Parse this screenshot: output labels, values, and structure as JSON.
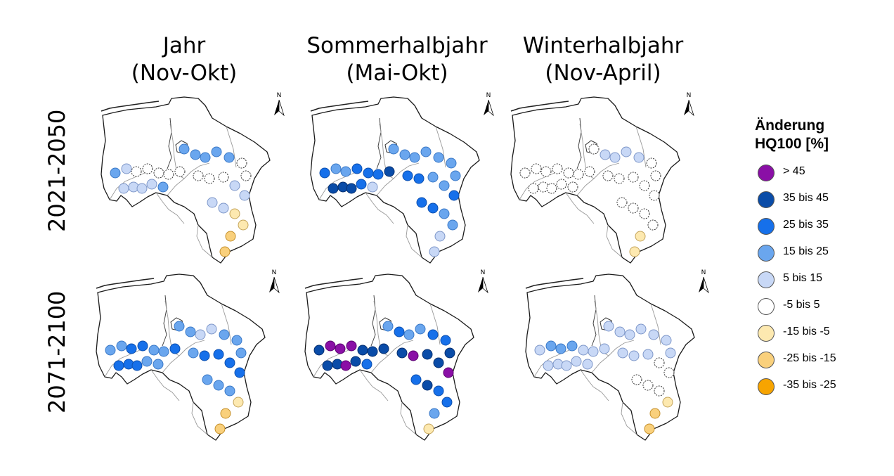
{
  "columns": [
    {
      "line1": "Jahr",
      "line2": "(Nov-Okt)"
    },
    {
      "line1": "Sommerhalbjahr",
      "line2": "(Mai-Okt)"
    },
    {
      "line1": "Winterhalbjahr",
      "line2": "(Nov-April)"
    }
  ],
  "rows": [
    {
      "label": "2021-2050"
    },
    {
      "label": "2071-2100"
    }
  ],
  "north_arrow_label": "N",
  "legend": {
    "title_line1": "Änderung",
    "title_line2": "HQ100 [%]",
    "items": [
      {
        "label": "> 45",
        "color": "#8a0fa6"
      },
      {
        "label": "35 bis 45",
        "color": "#0a4ca8"
      },
      {
        "label": "25 bis 35",
        "color": "#1670ea"
      },
      {
        "label": "15 bis 25",
        "color": "#6aa6ee"
      },
      {
        "label": "5 bis 15",
        "color": "#c8d8f6"
      },
      {
        "label": "-5 bis 5",
        "color": "#ffffff"
      },
      {
        "label": "-15 bis -5",
        "color": "#fde9b0"
      },
      {
        "label": "-25 bis -15",
        "color": "#f9d07c"
      },
      {
        "label": "-35 bis -25",
        "color": "#f7a400"
      }
    ]
  },
  "panels": [
    {
      "period": "2021-2050",
      "season": "Jahr",
      "class_pattern": "345555544443333335555544446677"
    },
    {
      "period": "2021-2050",
      "season": "Sommerhalbjahr",
      "class_pattern": "233222111124333333322332223344"
    },
    {
      "period": "2021-2050",
      "season": "Winterhalbjahr",
      "class_pattern": "555555555555544445555555555566"
    },
    {
      "period": "2071-2100",
      "season": "Jahr",
      "class_pattern": "332233222233334433332222333677"
    },
    {
      "period": "2071-2100",
      "season": "Sommerhalbjahr",
      "class_pattern": "100011111012323322110110212236"
    },
    {
      "period": "2071-2100",
      "season": "Winterhalbjahr",
      "class_pattern": "433344444444444444444455555677"
    }
  ]
}
